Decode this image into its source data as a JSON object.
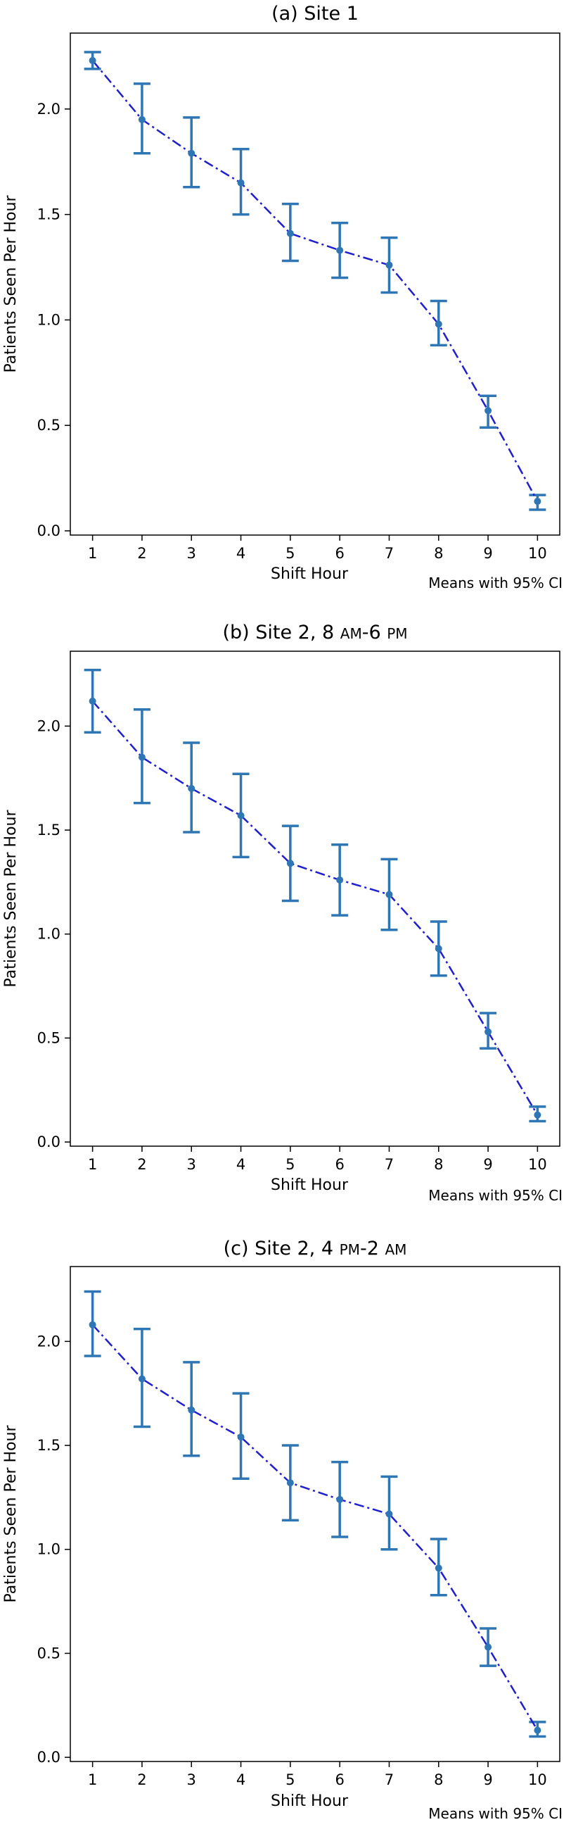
{
  "chart_data": [
    {
      "type": "line",
      "title": "(a) Site 1",
      "xlabel": "Shift Hour",
      "ylabel": "Patients Seen Per Hour",
      "annotation": "Means with 95% CI",
      "x": [
        1,
        2,
        3,
        4,
        5,
        6,
        7,
        8,
        9,
        10
      ],
      "yticks": [
        0.0,
        0.5,
        1.0,
        1.5,
        2.0
      ],
      "ylim": [
        -0.02,
        2.36
      ],
      "series": [
        {
          "values": [
            2.23,
            1.95,
            1.79,
            1.65,
            1.41,
            1.33,
            1.26,
            0.98,
            0.57,
            0.14
          ],
          "ci_low": [
            2.19,
            1.79,
            1.63,
            1.5,
            1.28,
            1.2,
            1.13,
            0.88,
            0.49,
            0.1
          ],
          "ci_high": [
            2.27,
            2.12,
            1.96,
            1.81,
            1.55,
            1.46,
            1.39,
            1.09,
            0.64,
            0.17
          ]
        }
      ],
      "colors": {
        "line": "#1f1fcf",
        "errorbar": "#2e76b4"
      }
    },
    {
      "type": "line",
      "title": "(b) Site 2, 8 am-6 pm",
      "title_parts": [
        "(b) Site 2, 8 ",
        "AM",
        "-6 ",
        "PM"
      ],
      "xlabel": "Shift Hour",
      "ylabel": "Patients Seen Per Hour",
      "annotation": "Means with 95% CI",
      "x": [
        1,
        2,
        3,
        4,
        5,
        6,
        7,
        8,
        9,
        10
      ],
      "yticks": [
        0.0,
        0.5,
        1.0,
        1.5,
        2.0
      ],
      "ylim": [
        -0.02,
        2.36
      ],
      "series": [
        {
          "values": [
            2.12,
            1.85,
            1.7,
            1.57,
            1.34,
            1.26,
            1.19,
            0.93,
            0.53,
            0.13
          ],
          "ci_low": [
            1.97,
            1.63,
            1.49,
            1.37,
            1.16,
            1.09,
            1.02,
            0.8,
            0.45,
            0.1
          ],
          "ci_high": [
            2.27,
            2.08,
            1.92,
            1.77,
            1.52,
            1.43,
            1.36,
            1.06,
            0.62,
            0.17
          ]
        }
      ],
      "colors": {
        "line": "#1f1fcf",
        "errorbar": "#2e76b4"
      }
    },
    {
      "type": "line",
      "title": "(c) Site 2, 4 pm-2 am",
      "title_parts": [
        "(c) Site 2, 4 ",
        "PM",
        "-2 ",
        "AM"
      ],
      "xlabel": "Shift Hour",
      "ylabel": "Patients Seen Per Hour",
      "annotation": "Means with 95% CI",
      "x": [
        1,
        2,
        3,
        4,
        5,
        6,
        7,
        8,
        9,
        10
      ],
      "yticks": [
        0.0,
        0.5,
        1.0,
        1.5,
        2.0
      ],
      "ylim": [
        -0.02,
        2.36
      ],
      "series": [
        {
          "values": [
            2.08,
            1.82,
            1.67,
            1.54,
            1.32,
            1.24,
            1.17,
            0.91,
            0.53,
            0.13
          ],
          "ci_low": [
            1.93,
            1.59,
            1.45,
            1.34,
            1.14,
            1.06,
            1.0,
            0.78,
            0.44,
            0.1
          ],
          "ci_high": [
            2.24,
            2.06,
            1.9,
            1.75,
            1.5,
            1.42,
            1.35,
            1.05,
            0.62,
            0.17
          ]
        }
      ],
      "colors": {
        "line": "#1f1fcf",
        "errorbar": "#2e76b4"
      }
    }
  ]
}
